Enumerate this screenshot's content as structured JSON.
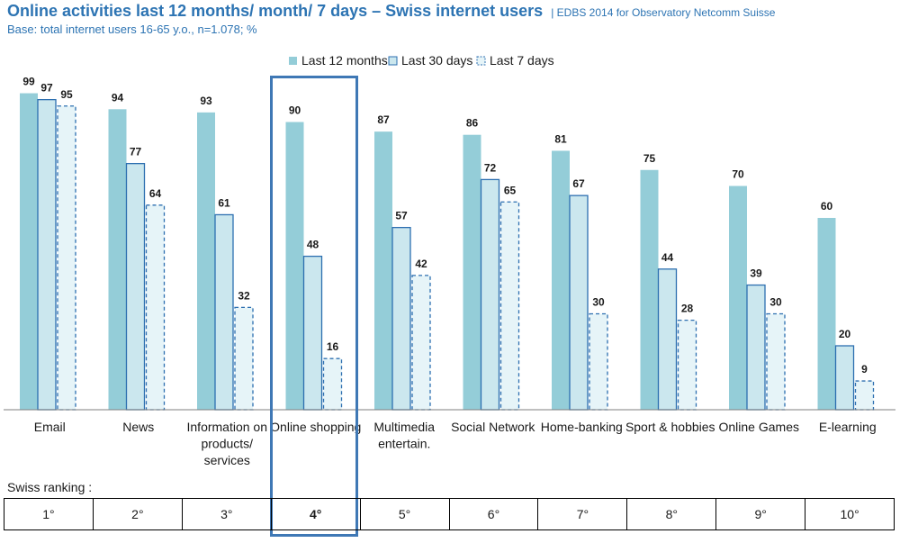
{
  "header": {
    "title": "Online activities last 12 months/ month/ 7 days – Swiss internet users",
    "source": "EDBS 2014 for Observatory Netcomm Suisse",
    "subtitle": "Base: total internet users 16-65 y.o., n=1.078; %"
  },
  "colors": {
    "series_12m": "#94cdd8",
    "series_30d_fill": "#cbe7ee",
    "series_30d_stroke": "#2d6fb0",
    "series_7d_fill": "#e6f4f8",
    "series_7d_stroke": "#2d6fb0",
    "highlight": "#3f78b5",
    "title": "#2d74b3"
  },
  "chart_data": {
    "type": "bar",
    "categories": [
      "Email",
      "News",
      "Information on products/ services",
      "Online shopping",
      "Multimedia entertain.",
      "Social Network",
      "Home-banking",
      "Sport & hobbies",
      "Online Games",
      "E-learning"
    ],
    "category_lines": [
      [
        "Email"
      ],
      [
        "News"
      ],
      [
        "Information on",
        "products/",
        "services"
      ],
      [
        "Online shopping"
      ],
      [
        "Multimedia",
        "entertain."
      ],
      [
        "Social Network"
      ],
      [
        "Home-banking"
      ],
      [
        "Sport & hobbies"
      ],
      [
        "Online Games"
      ],
      [
        "E-learning"
      ]
    ],
    "series": [
      {
        "name": "Last 12 months",
        "values": [
          99,
          94,
          93,
          90,
          87,
          86,
          81,
          75,
          70,
          60
        ]
      },
      {
        "name": "Last 30 days",
        "values": [
          97,
          77,
          61,
          48,
          57,
          72,
          67,
          44,
          39,
          20
        ]
      },
      {
        "name": "Last 7 days",
        "values": [
          95,
          64,
          32,
          16,
          42,
          65,
          30,
          28,
          30,
          9
        ]
      }
    ],
    "ylim": [
      0,
      100
    ],
    "legend_position": "top-center",
    "grid": false,
    "highlighted_category": "Online shopping"
  },
  "ranking": {
    "label": "Swiss ranking :",
    "values": [
      "1°",
      "2°",
      "3°",
      "4°",
      "5°",
      "6°",
      "7°",
      "8°",
      "9°",
      "10°"
    ],
    "highlighted_index": 3
  }
}
